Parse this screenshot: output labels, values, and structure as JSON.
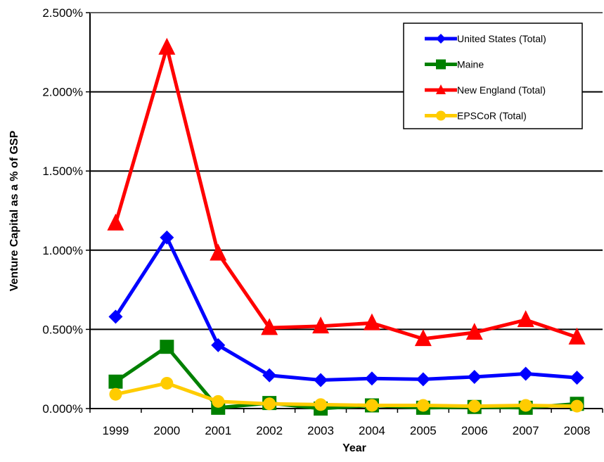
{
  "chart_data": {
    "type": "line",
    "title": "",
    "xlabel": "Year",
    "ylabel": "Venture Capital as a % of GSP",
    "categories": [
      "1999",
      "2000",
      "2001",
      "2002",
      "2003",
      "2004",
      "2005",
      "2006",
      "2007",
      "2008"
    ],
    "ylim": [
      0,
      2.5
    ],
    "y_ticks": [
      0,
      0.5,
      1.0,
      1.5,
      2.0,
      2.5
    ],
    "y_tick_labels": [
      "0.000%",
      "0.500%",
      "1.000%",
      "1.500%",
      "2.000%",
      "2.500%"
    ],
    "grid": true,
    "legend_position": "top-right",
    "series": [
      {
        "name": "United States (Total)",
        "color": "#0000FF",
        "marker": "diamond",
        "values": [
          0.58,
          1.08,
          0.4,
          0.21,
          0.18,
          0.19,
          0.185,
          0.2,
          0.22,
          0.195
        ]
      },
      {
        "name": "Maine",
        "color": "#008000",
        "marker": "square",
        "values": [
          0.17,
          0.39,
          0.005,
          0.035,
          0.0,
          0.02,
          0.005,
          0.01,
          0.005,
          0.03
        ]
      },
      {
        "name": "New England (Total)",
        "color": "#FF0000",
        "marker": "triangle",
        "values": [
          1.17,
          2.28,
          0.98,
          0.51,
          0.52,
          0.54,
          0.44,
          0.48,
          0.56,
          0.45
        ]
      },
      {
        "name": "EPSCoR (Total)",
        "color": "#FFCC00",
        "marker": "circle",
        "values": [
          0.09,
          0.16,
          0.045,
          0.03,
          0.025,
          0.02,
          0.02,
          0.015,
          0.02,
          0.015
        ]
      }
    ]
  }
}
